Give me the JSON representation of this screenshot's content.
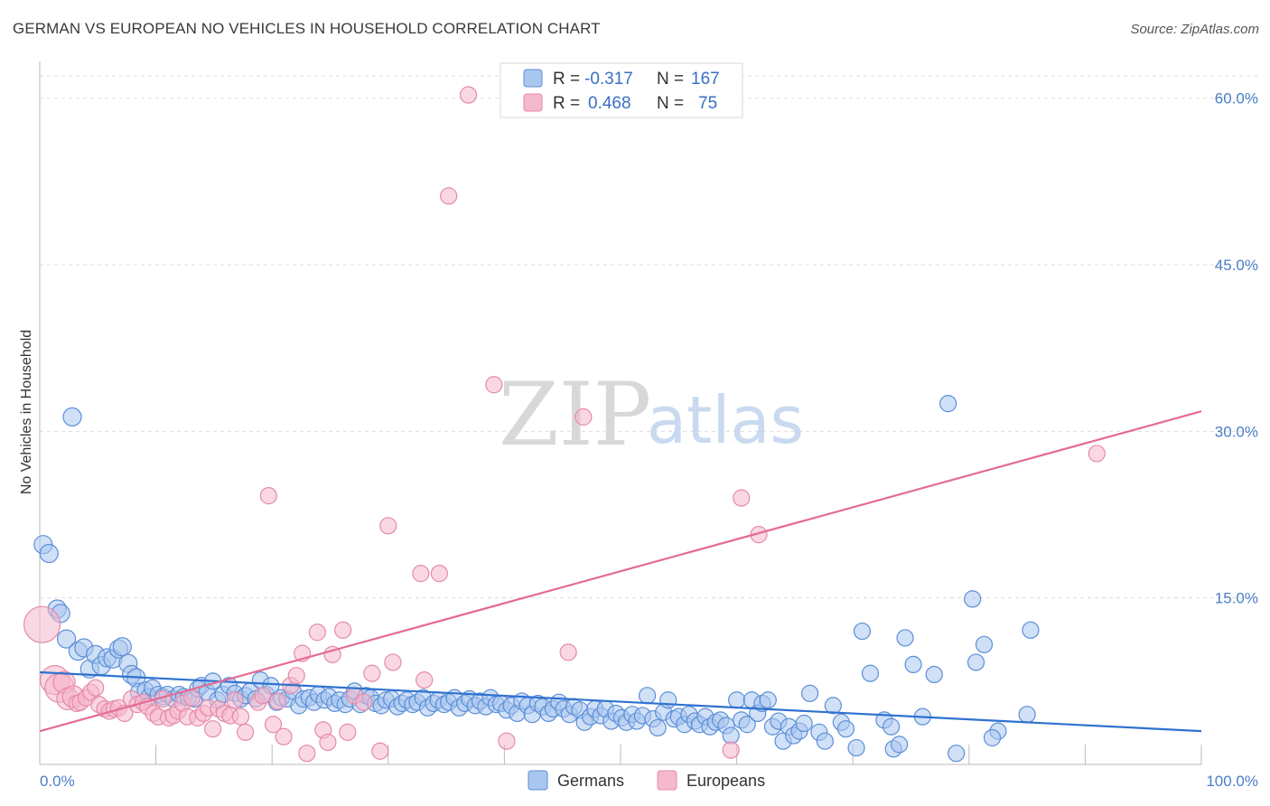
{
  "title": "GERMAN VS EUROPEAN NO VEHICLES IN HOUSEHOLD CORRELATION CHART",
  "source": "Source: ZipAtlas.com",
  "watermark": {
    "zip": "ZIP",
    "atlas": "atlas"
  },
  "colors": {
    "germans_fill": "#a9c6ee",
    "germans_stroke": "#5b8fd8",
    "germans_line": "#2f72d0",
    "europeans_fill": "#f6b8cc",
    "europeans_stroke": "#e58aa8",
    "europeans_line": "#e46b95",
    "tick_color": "#4a7ec9",
    "grid": "#dddddd"
  },
  "legend": {
    "rows": [
      {
        "r_label": "R =",
        "r_value": "-0.317",
        "n_label": "N =",
        "n_value": "167"
      },
      {
        "r_label": "R =",
        "r_value": "0.468",
        "n_label": "N =",
        "n_value": "75"
      }
    ]
  },
  "chart_data": {
    "type": "scatter",
    "title": "GERMAN VS EUROPEAN NO VEHICLES IN HOUSEHOLD CORRELATION CHART",
    "xlabel": "",
    "ylabel": "No Vehicles in Household",
    "xlim": [
      0,
      100
    ],
    "ylim": [
      0,
      62.5
    ],
    "x_tick_labels": [
      "0.0%",
      "100.0%"
    ],
    "y_ticks": [
      15,
      30,
      45,
      60
    ],
    "y_tick_labels": [
      "15.0%",
      "30.0%",
      "45.0%",
      "60.0%"
    ],
    "grid": "horizontal dashed",
    "legend_position": "top-center; bottom-center",
    "series": [
      {
        "name": "Germans",
        "r": -0.317,
        "n": 167,
        "trend": {
          "x": [
            0,
            100
          ],
          "y": [
            8.3,
            3.0
          ]
        },
        "points": [
          [
            0.3,
            19.8
          ],
          [
            0.8,
            19.0
          ],
          [
            2.8,
            31.3
          ],
          [
            1.5,
            14.0
          ],
          [
            1.8,
            13.6
          ],
          [
            2.3,
            11.3
          ],
          [
            3.3,
            10.2
          ],
          [
            3.8,
            10.5
          ],
          [
            4.3,
            8.6
          ],
          [
            4.8,
            9.9
          ],
          [
            5.3,
            8.9
          ],
          [
            5.8,
            9.6
          ],
          [
            6.3,
            9.5
          ],
          [
            6.8,
            10.4
          ],
          [
            7.1,
            10.6
          ],
          [
            7.6,
            9.1
          ],
          [
            7.9,
            8.1
          ],
          [
            8.3,
            7.8
          ],
          [
            8.6,
            6.5
          ],
          [
            9.1,
            6.7
          ],
          [
            9.4,
            6.1
          ],
          [
            9.7,
            6.9
          ],
          [
            10.2,
            6.3
          ],
          [
            10.6,
            6.1
          ],
          [
            11.0,
            6.3
          ],
          [
            11.5,
            5.9
          ],
          [
            12.0,
            6.3
          ],
          [
            12.4,
            6.1
          ],
          [
            12.8,
            6.0
          ],
          [
            13.3,
            5.9
          ],
          [
            13.6,
            6.8
          ],
          [
            13.9,
            7.1
          ],
          [
            14.4,
            6.5
          ],
          [
            14.9,
            7.5
          ],
          [
            15.3,
            5.8
          ],
          [
            15.8,
            6.3
          ],
          [
            16.3,
            7.1
          ],
          [
            16.8,
            6.4
          ],
          [
            17.3,
            5.9
          ],
          [
            17.7,
            6.2
          ],
          [
            18.1,
            6.6
          ],
          [
            18.6,
            5.9
          ],
          [
            19.0,
            7.6
          ],
          [
            19.5,
            6.3
          ],
          [
            19.9,
            7.1
          ],
          [
            20.4,
            5.6
          ],
          [
            20.8,
            6.0
          ],
          [
            21.3,
            5.9
          ],
          [
            21.8,
            6.6
          ],
          [
            22.3,
            5.3
          ],
          [
            22.7,
            5.9
          ],
          [
            23.2,
            6.0
          ],
          [
            23.6,
            5.6
          ],
          [
            24.0,
            6.3
          ],
          [
            24.5,
            5.8
          ],
          [
            24.9,
            6.1
          ],
          [
            25.4,
            5.5
          ],
          [
            25.8,
            5.8
          ],
          [
            26.3,
            5.4
          ],
          [
            26.7,
            5.9
          ],
          [
            27.1,
            6.6
          ],
          [
            27.6,
            5.4
          ],
          [
            28.1,
            6.2
          ],
          [
            28.5,
            6.0
          ],
          [
            28.9,
            5.5
          ],
          [
            29.4,
            5.3
          ],
          [
            29.8,
            5.8
          ],
          [
            30.3,
            5.9
          ],
          [
            30.8,
            5.2
          ],
          [
            31.2,
            5.5
          ],
          [
            31.6,
            5.8
          ],
          [
            32.1,
            5.4
          ],
          [
            32.5,
            5.6
          ],
          [
            33.0,
            6.0
          ],
          [
            33.4,
            5.1
          ],
          [
            33.9,
            5.5
          ],
          [
            34.3,
            5.8
          ],
          [
            34.8,
            5.4
          ],
          [
            35.2,
            5.6
          ],
          [
            35.7,
            6.0
          ],
          [
            36.1,
            5.1
          ],
          [
            36.6,
            5.5
          ],
          [
            37.0,
            5.9
          ],
          [
            37.5,
            5.3
          ],
          [
            37.9,
            5.7
          ],
          [
            38.4,
            5.2
          ],
          [
            38.8,
            6.0
          ],
          [
            39.3,
            5.4
          ],
          [
            39.7,
            5.5
          ],
          [
            40.2,
            4.9
          ],
          [
            40.6,
            5.3
          ],
          [
            41.1,
            4.6
          ],
          [
            41.5,
            5.7
          ],
          [
            42.0,
            5.3
          ],
          [
            42.4,
            4.5
          ],
          [
            42.9,
            5.5
          ],
          [
            43.3,
            5.2
          ],
          [
            43.8,
            4.6
          ],
          [
            44.2,
            5.0
          ],
          [
            44.7,
            5.6
          ],
          [
            45.1,
            5.0
          ],
          [
            45.6,
            4.5
          ],
          [
            46.0,
            5.2
          ],
          [
            46.5,
            4.9
          ],
          [
            46.9,
            3.8
          ],
          [
            47.4,
            4.3
          ],
          [
            47.8,
            5.0
          ],
          [
            48.3,
            4.4
          ],
          [
            48.7,
            5.0
          ],
          [
            49.2,
            3.9
          ],
          [
            49.6,
            4.6
          ],
          [
            50.1,
            4.2
          ],
          [
            50.5,
            3.8
          ],
          [
            51.0,
            4.5
          ],
          [
            51.4,
            3.9
          ],
          [
            51.9,
            4.4
          ],
          [
            52.3,
            6.2
          ],
          [
            52.8,
            4.1
          ],
          [
            53.2,
            3.3
          ],
          [
            53.7,
            4.7
          ],
          [
            54.1,
            5.8
          ],
          [
            54.6,
            4.1
          ],
          [
            55.0,
            4.3
          ],
          [
            55.5,
            3.6
          ],
          [
            55.9,
            4.5
          ],
          [
            56.4,
            3.9
          ],
          [
            56.8,
            3.6
          ],
          [
            57.3,
            4.3
          ],
          [
            57.7,
            3.4
          ],
          [
            58.2,
            3.8
          ],
          [
            58.6,
            4.0
          ],
          [
            59.1,
            3.5
          ],
          [
            59.5,
            2.6
          ],
          [
            60.0,
            5.8
          ],
          [
            60.4,
            4.0
          ],
          [
            60.9,
            3.6
          ],
          [
            61.3,
            5.8
          ],
          [
            61.8,
            4.6
          ],
          [
            62.2,
            5.5
          ],
          [
            62.7,
            5.8
          ],
          [
            63.1,
            3.4
          ],
          [
            63.6,
            3.9
          ],
          [
            64.0,
            2.1
          ],
          [
            64.5,
            3.4
          ],
          [
            64.9,
            2.6
          ],
          [
            65.4,
            3.0
          ],
          [
            65.8,
            3.7
          ],
          [
            66.3,
            6.4
          ],
          [
            67.1,
            2.9
          ],
          [
            67.6,
            2.1
          ],
          [
            68.3,
            5.3
          ],
          [
            69.0,
            3.8
          ],
          [
            69.4,
            3.2
          ],
          [
            70.3,
            1.5
          ],
          [
            70.8,
            12.0
          ],
          [
            71.5,
            8.2
          ],
          [
            72.7,
            4.0
          ],
          [
            73.5,
            1.4
          ],
          [
            74.0,
            1.8
          ],
          [
            73.3,
            3.4
          ],
          [
            74.5,
            11.4
          ],
          [
            75.2,
            9.0
          ],
          [
            76.0,
            4.3
          ],
          [
            77.0,
            8.1
          ],
          [
            78.2,
            32.5
          ],
          [
            78.9,
            1.0
          ],
          [
            80.3,
            14.9
          ],
          [
            80.6,
            9.2
          ],
          [
            81.3,
            10.8
          ],
          [
            82.5,
            3.0
          ],
          [
            85.3,
            12.1
          ],
          [
            82.0,
            2.4
          ],
          [
            85.0,
            4.5
          ]
        ]
      },
      {
        "name": "Europeans",
        "r": 0.468,
        "n": 75,
        "trend": {
          "x": [
            0,
            100
          ],
          "y": [
            3.0,
            31.8
          ]
        },
        "points": [
          [
            0.2,
            12.6
          ],
          [
            1.3,
            7.6
          ],
          [
            1.7,
            6.9
          ],
          [
            2.1,
            7.4
          ],
          [
            2.4,
            5.9
          ],
          [
            2.9,
            6.1
          ],
          [
            3.2,
            5.5
          ],
          [
            3.5,
            5.6
          ],
          [
            4.0,
            6.0
          ],
          [
            4.4,
            6.5
          ],
          [
            4.8,
            6.9
          ],
          [
            5.1,
            5.4
          ],
          [
            5.6,
            5.0
          ],
          [
            6.0,
            4.8
          ],
          [
            6.4,
            5.0
          ],
          [
            6.8,
            5.1
          ],
          [
            7.3,
            4.6
          ],
          [
            7.9,
            5.9
          ],
          [
            8.4,
            5.4
          ],
          [
            8.9,
            5.6
          ],
          [
            9.3,
            5.2
          ],
          [
            9.8,
            4.6
          ],
          [
            10.2,
            4.3
          ],
          [
            10.6,
            5.9
          ],
          [
            11.1,
            4.2
          ],
          [
            11.5,
            4.4
          ],
          [
            11.9,
            4.8
          ],
          [
            12.3,
            5.5
          ],
          [
            12.7,
            4.3
          ],
          [
            13.1,
            6.0
          ],
          [
            13.6,
            4.2
          ],
          [
            14.1,
            4.6
          ],
          [
            14.5,
            5.1
          ],
          [
            14.9,
            3.2
          ],
          [
            15.4,
            5.0
          ],
          [
            15.9,
            4.6
          ],
          [
            16.4,
            4.4
          ],
          [
            16.8,
            5.8
          ],
          [
            17.3,
            4.3
          ],
          [
            17.7,
            2.9
          ],
          [
            18.8,
            5.6
          ],
          [
            19.2,
            6.2
          ],
          [
            19.7,
            24.2
          ],
          [
            20.1,
            3.6
          ],
          [
            20.5,
            5.7
          ],
          [
            21.0,
            2.5
          ],
          [
            21.6,
            7.1
          ],
          [
            22.1,
            8.0
          ],
          [
            22.6,
            10.0
          ],
          [
            23.0,
            1.0
          ],
          [
            23.9,
            11.9
          ],
          [
            24.4,
            3.1
          ],
          [
            24.8,
            2.0
          ],
          [
            25.2,
            9.9
          ],
          [
            26.1,
            12.1
          ],
          [
            26.5,
            2.9
          ],
          [
            27.1,
            6.2
          ],
          [
            27.9,
            5.6
          ],
          [
            28.6,
            8.2
          ],
          [
            29.3,
            1.2
          ],
          [
            30.0,
            21.5
          ],
          [
            30.4,
            9.2
          ],
          [
            32.8,
            17.2
          ],
          [
            33.1,
            7.6
          ],
          [
            34.4,
            17.2
          ],
          [
            35.2,
            51.2
          ],
          [
            36.9,
            60.3
          ],
          [
            39.1,
            34.2
          ],
          [
            40.2,
            2.1
          ],
          [
            45.5,
            10.1
          ],
          [
            46.8,
            31.3
          ],
          [
            59.5,
            1.3
          ],
          [
            60.4,
            24.0
          ],
          [
            61.9,
            20.7
          ],
          [
            91.0,
            28.0
          ]
        ]
      }
    ]
  },
  "bottom_legend": {
    "items": [
      {
        "label": "Germans"
      },
      {
        "label": "Europeans"
      }
    ]
  }
}
